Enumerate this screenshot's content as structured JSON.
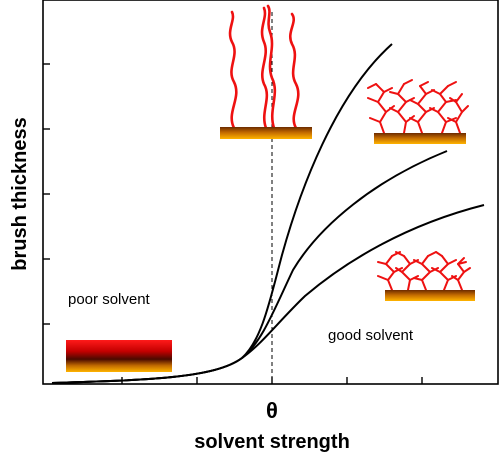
{
  "axes": {
    "xlabel": "solvent strength",
    "ylabel": "brush thickness",
    "theta_label": "θ"
  },
  "regions": {
    "poor": "poor solvent",
    "good": "good solvent"
  },
  "curves": [
    {
      "id": "high-grafting-density"
    },
    {
      "id": "medium-grafting-density"
    },
    {
      "id": "low-grafting-density"
    }
  ],
  "colors": {
    "chains": "#ee1111",
    "substrate_top": "#7a3300",
    "substrate_bottom": "#ffb000",
    "curve": "#000000"
  }
}
